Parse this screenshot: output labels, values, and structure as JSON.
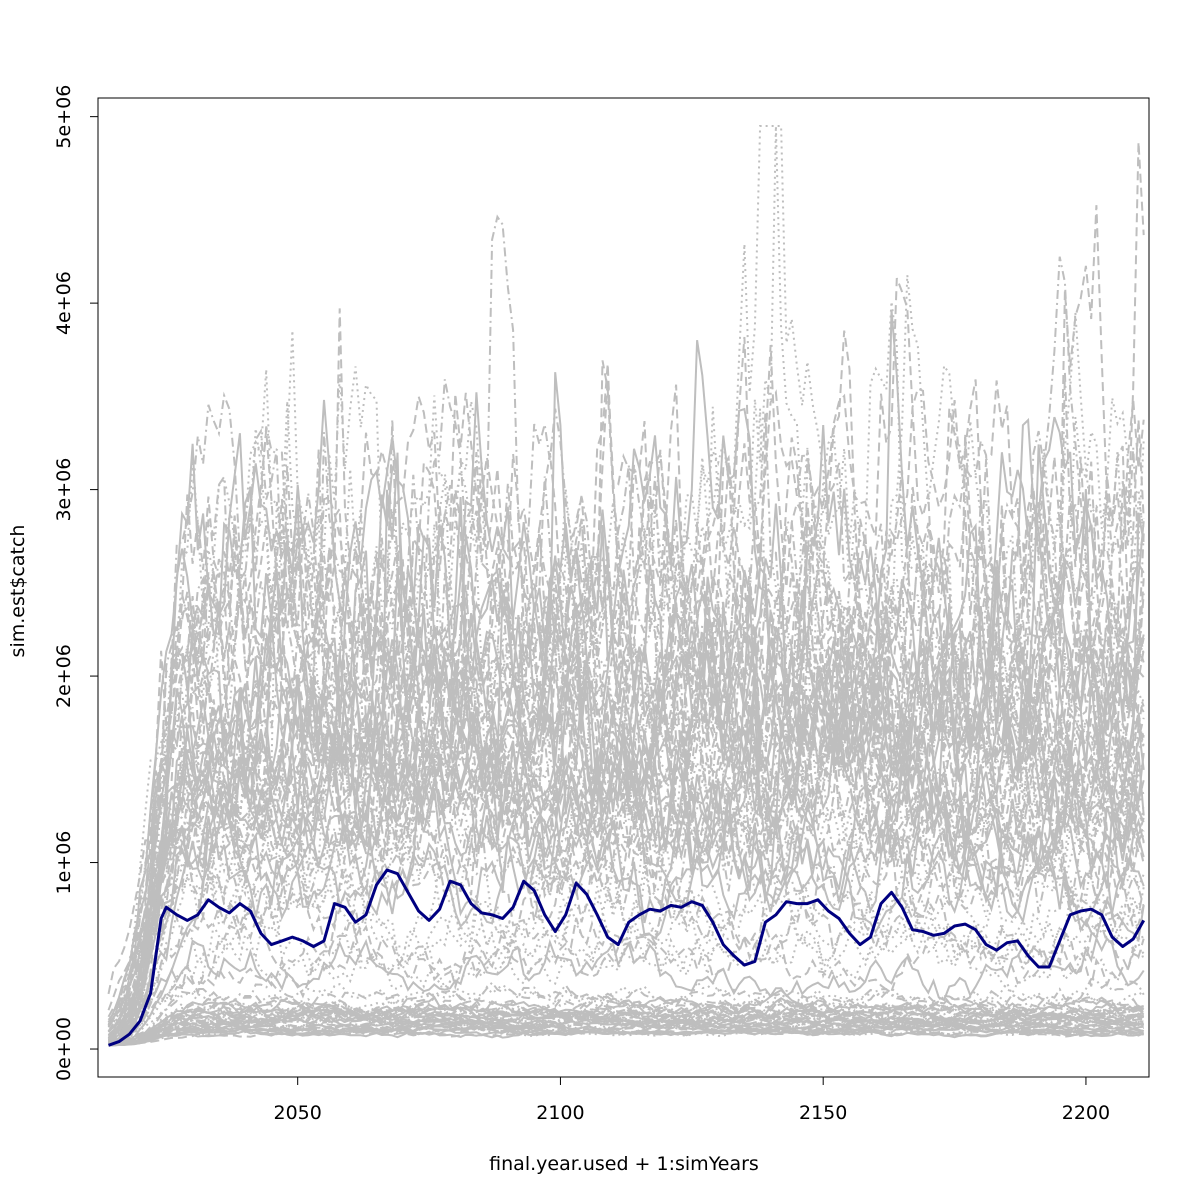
{
  "chart_data": {
    "type": "line",
    "xlabel": "final.year.used + 1:simYears",
    "ylabel": "sim.est$catch",
    "xlim": [
      2012,
      2212
    ],
    "ylim": [
      -150000,
      5100000
    ],
    "x_ticks": [
      2050,
      2100,
      2150,
      2200
    ],
    "x_tick_labels": [
      "2050",
      "2100",
      "2150",
      "2200"
    ],
    "y_ticks": [
      0,
      1000000,
      2000000,
      3000000,
      4000000,
      5000000
    ],
    "y_tick_labels": [
      "0e+00",
      "1e+06",
      "2e+06",
      "3e+06",
      "4e+06",
      "5e+06"
    ],
    "grid": false,
    "legend": "none",
    "colors": {
      "simulations": "#bebebe",
      "median": "#000080"
    },
    "x_start": 2014,
    "x_end": 2211,
    "simulation_series_count": 100,
    "series": [
      {
        "style": "solid",
        "color": "#000080",
        "points": [
          [
            2014,
            20000
          ],
          [
            2016,
            40000
          ],
          [
            2018,
            80000
          ],
          [
            2020,
            150000
          ],
          [
            2022,
            300000
          ],
          [
            2024,
            700000
          ],
          [
            2025,
            760000
          ],
          [
            2027,
            720000
          ],
          [
            2029,
            690000
          ],
          [
            2031,
            720000
          ],
          [
            2033,
            800000
          ],
          [
            2035,
            760000
          ],
          [
            2037,
            730000
          ],
          [
            2039,
            780000
          ],
          [
            2041,
            740000
          ],
          [
            2043,
            620000
          ],
          [
            2045,
            560000
          ],
          [
            2047,
            580000
          ],
          [
            2049,
            600000
          ],
          [
            2051,
            580000
          ],
          [
            2053,
            550000
          ],
          [
            2055,
            580000
          ],
          [
            2057,
            780000
          ],
          [
            2059,
            760000
          ],
          [
            2061,
            680000
          ],
          [
            2063,
            720000
          ],
          [
            2065,
            880000
          ],
          [
            2067,
            960000
          ],
          [
            2069,
            940000
          ],
          [
            2071,
            840000
          ],
          [
            2073,
            740000
          ],
          [
            2075,
            690000
          ],
          [
            2077,
            750000
          ],
          [
            2079,
            900000
          ],
          [
            2081,
            880000
          ],
          [
            2083,
            780000
          ],
          [
            2085,
            730000
          ],
          [
            2087,
            720000
          ],
          [
            2089,
            700000
          ],
          [
            2091,
            760000
          ],
          [
            2093,
            900000
          ],
          [
            2095,
            850000
          ],
          [
            2097,
            720000
          ],
          [
            2099,
            630000
          ],
          [
            2101,
            720000
          ],
          [
            2103,
            890000
          ],
          [
            2105,
            830000
          ],
          [
            2107,
            720000
          ],
          [
            2109,
            600000
          ],
          [
            2111,
            560000
          ],
          [
            2113,
            680000
          ],
          [
            2115,
            720000
          ],
          [
            2117,
            750000
          ],
          [
            2119,
            740000
          ],
          [
            2121,
            770000
          ],
          [
            2123,
            760000
          ],
          [
            2125,
            790000
          ],
          [
            2127,
            770000
          ],
          [
            2129,
            680000
          ],
          [
            2131,
            560000
          ],
          [
            2133,
            500000
          ],
          [
            2135,
            450000
          ],
          [
            2137,
            470000
          ],
          [
            2139,
            680000
          ],
          [
            2141,
            720000
          ],
          [
            2143,
            790000
          ],
          [
            2145,
            780000
          ],
          [
            2147,
            780000
          ],
          [
            2149,
            800000
          ],
          [
            2151,
            740000
          ],
          [
            2153,
            700000
          ],
          [
            2155,
            620000
          ],
          [
            2157,
            560000
          ],
          [
            2159,
            600000
          ],
          [
            2161,
            780000
          ],
          [
            2163,
            840000
          ],
          [
            2165,
            760000
          ],
          [
            2167,
            640000
          ],
          [
            2169,
            630000
          ],
          [
            2171,
            610000
          ],
          [
            2173,
            620000
          ],
          [
            2175,
            660000
          ],
          [
            2177,
            670000
          ],
          [
            2179,
            640000
          ],
          [
            2181,
            560000
          ],
          [
            2183,
            530000
          ],
          [
            2185,
            570000
          ],
          [
            2187,
            580000
          ],
          [
            2189,
            500000
          ],
          [
            2191,
            440000
          ],
          [
            2193,
            440000
          ],
          [
            2195,
            580000
          ],
          [
            2197,
            720000
          ],
          [
            2199,
            740000
          ],
          [
            2201,
            750000
          ],
          [
            2203,
            720000
          ],
          [
            2205,
            600000
          ],
          [
            2207,
            550000
          ],
          [
            2209,
            590000
          ],
          [
            2211,
            690000
          ]
        ]
      }
    ]
  }
}
